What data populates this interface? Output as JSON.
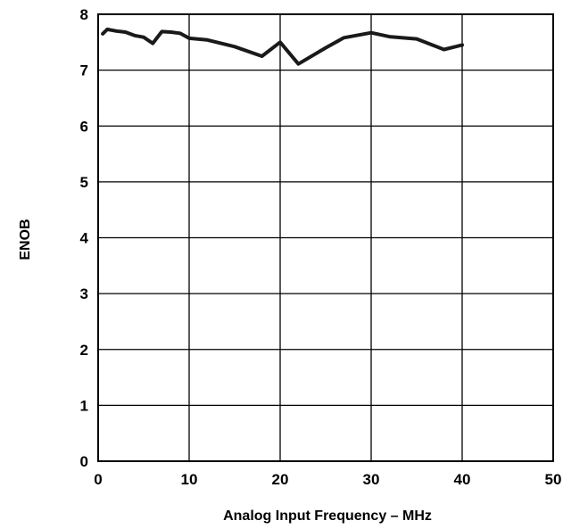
{
  "chart_data": {
    "type": "line",
    "title": "",
    "xlabel": "Analog Input Frequency – MHz",
    "ylabel": "ENOB",
    "xlim": [
      0,
      50
    ],
    "ylim": [
      0,
      8
    ],
    "xticks": [
      0,
      10,
      20,
      30,
      40,
      50
    ],
    "yticks": [
      0,
      1,
      2,
      3,
      4,
      5,
      6,
      7,
      8
    ],
    "grid": true,
    "legend": "none",
    "series": [
      {
        "color": "#1a1a1a",
        "x": [
          0.5,
          1,
          2,
          3,
          4,
          5,
          6,
          7,
          8,
          9,
          10,
          12,
          15,
          18,
          20,
          22,
          25,
          27,
          30,
          32,
          35,
          38,
          40
        ],
        "y": [
          7.65,
          7.73,
          7.7,
          7.68,
          7.62,
          7.59,
          7.48,
          7.69,
          7.68,
          7.66,
          7.57,
          7.54,
          7.42,
          7.25,
          7.5,
          7.11,
          7.4,
          7.58,
          7.67,
          7.6,
          7.56,
          7.37,
          7.45
        ]
      }
    ]
  }
}
